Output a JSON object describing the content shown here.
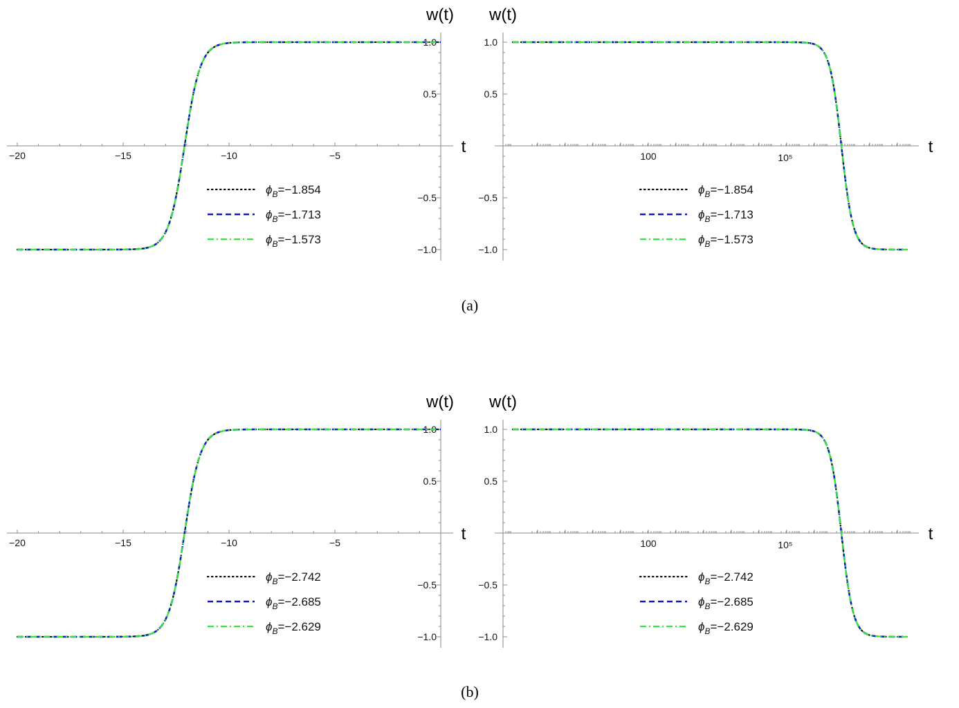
{
  "colors": {
    "axis": "#8a8a8a",
    "black_series": "#000000",
    "blue_series": "#1515c8",
    "green_series": "#33e833"
  },
  "panels": [
    {
      "caption": "(a)"
    },
    {
      "caption": "(b)"
    }
  ],
  "chart_data": [
    {
      "type": "line",
      "panel": "(a)",
      "xlabel": "t",
      "ylabel": "w(t)",
      "xlim": [
        -20,
        0
      ],
      "ylim": [
        -1.0,
        1.0
      ],
      "x_ticks": [
        -20,
        -15,
        -10,
        -5
      ],
      "y_ticks": [
        -1.0,
        -0.5,
        0.5,
        1.0
      ],
      "x_tick_labels": [
        "−20",
        "−15",
        "−10",
        "−5"
      ],
      "y_tick_labels": [
        "−1.0",
        "−0.5",
        "0.5",
        "1.0"
      ],
      "curve": {
        "shape": "tanh",
        "center": -12.1,
        "width": 0.75
      },
      "legend_position": "bottom-center",
      "series": [
        {
          "name": "ϕB=−1.854",
          "symbol": "ϕ",
          "subscript": "B",
          "value": "=−1.854",
          "style": "dotted",
          "color": "#000000"
        },
        {
          "name": "ϕB=−1.713",
          "symbol": "ϕ",
          "subscript": "B",
          "value": "=−1.713",
          "style": "dashed",
          "color": "#1515c8"
        },
        {
          "name": "ϕB=−1.573",
          "symbol": "ϕ",
          "subscript": "B",
          "value": "=−1.573",
          "style": "dashdot",
          "color": "#33e833"
        }
      ]
    },
    {
      "type": "line",
      "panel": "(a)",
      "xlabel": "t",
      "ylabel": "w(t)",
      "x_scale": "log",
      "ylim": [
        -1.0,
        1.0
      ],
      "x_tick_labels": [
        "100",
        "10⁵"
      ],
      "y_tick_labels": [
        "−1.0",
        "−0.5",
        "0.5",
        "1.0"
      ],
      "curve": {
        "shape": "tanh-decreasing"
      },
      "legend_position": "bottom-center",
      "series": [
        {
          "name": "ϕB=−1.854",
          "symbol": "ϕ",
          "subscript": "B",
          "value": "=−1.854",
          "style": "dotted",
          "color": "#000000"
        },
        {
          "name": "ϕB=−1.713",
          "symbol": "ϕ",
          "subscript": "B",
          "value": "=−1.713",
          "style": "dashed",
          "color": "#1515c8"
        },
        {
          "name": "ϕB=−1.573",
          "symbol": "ϕ",
          "subscript": "B",
          "value": "=−1.573",
          "style": "dashdot",
          "color": "#33e833"
        }
      ]
    },
    {
      "type": "line",
      "panel": "(b)",
      "xlabel": "t",
      "ylabel": "w(t)",
      "xlim": [
        -20,
        0
      ],
      "ylim": [
        -1.0,
        1.0
      ],
      "x_ticks": [
        -20,
        -15,
        -10,
        -5
      ],
      "y_ticks": [
        -1.0,
        -0.5,
        0.5,
        1.0
      ],
      "x_tick_labels": [
        "−20",
        "−15",
        "−10",
        "−5"
      ],
      "y_tick_labels": [
        "−1.0",
        "−0.5",
        "0.5",
        "1.0"
      ],
      "curve": {
        "shape": "tanh",
        "center": -12.1,
        "width": 0.75
      },
      "legend_position": "bottom-center",
      "series": [
        {
          "name": "ϕB=−2.742",
          "symbol": "ϕ",
          "subscript": "B",
          "value": "=−2.742",
          "style": "dotted",
          "color": "#000000"
        },
        {
          "name": "ϕB=−2.685",
          "symbol": "ϕ",
          "subscript": "B",
          "value": "=−2.685",
          "style": "dashed",
          "color": "#1515c8"
        },
        {
          "name": "ϕB=−2.629",
          "symbol": "ϕ",
          "subscript": "B",
          "value": "=−2.629",
          "style": "dashdot",
          "color": "#33e833"
        }
      ]
    },
    {
      "type": "line",
      "panel": "(b)",
      "xlabel": "t",
      "ylabel": "w(t)",
      "x_scale": "log",
      "ylim": [
        -1.0,
        1.0
      ],
      "x_tick_labels": [
        "100",
        "10⁵"
      ],
      "y_tick_labels": [
        "−1.0",
        "−0.5",
        "0.5",
        "1.0"
      ],
      "curve": {
        "shape": "tanh-decreasing"
      },
      "legend_position": "bottom-center",
      "series": [
        {
          "name": "ϕB=−2.742",
          "symbol": "ϕ",
          "subscript": "B",
          "value": "=−2.742",
          "style": "dotted",
          "color": "#000000"
        },
        {
          "name": "ϕB=−2.685",
          "symbol": "ϕ",
          "subscript": "B",
          "value": "=−2.685",
          "style": "dashed",
          "color": "#1515c8"
        },
        {
          "name": "ϕB=−2.629",
          "symbol": "ϕ",
          "subscript": "B",
          "value": "=−2.629",
          "style": "dashdot",
          "color": "#33e833"
        }
      ]
    }
  ]
}
